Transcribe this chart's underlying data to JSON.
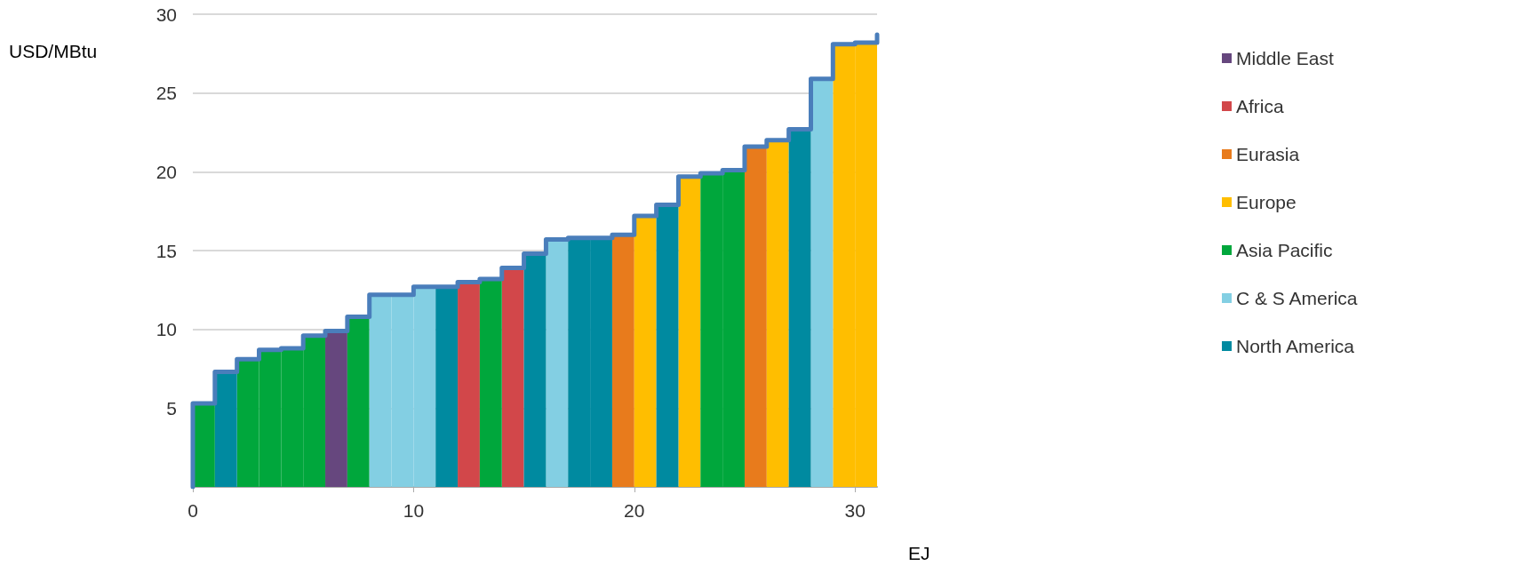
{
  "chart_data": {
    "type": "bar",
    "xlabel": "EJ",
    "ylabel": "USD/MBtu",
    "xlim": [
      0,
      31
    ],
    "xticks": [
      0,
      10,
      20,
      30
    ],
    "ylim": [
      0,
      30
    ],
    "yticks": [
      5,
      10,
      15,
      20,
      25,
      30
    ],
    "grid": "y",
    "legend": "right",
    "x": [
      0.5,
      1.5,
      2.5,
      3.5,
      4.5,
      5.5,
      6.5,
      7.5,
      8.5,
      9.5,
      10.5,
      11.5,
      12.5,
      13.5,
      14.5,
      15.5,
      16.5,
      17.5,
      18.5,
      19.5,
      20.5,
      21.5,
      22.5,
      23.5,
      24.5,
      25.5,
      26.5,
      27.5,
      28.5,
      29.5,
      30.5
    ],
    "series": [
      {
        "name": "Middle East",
        "color": "#66477e",
        "values": [
          null,
          null,
          null,
          null,
          null,
          null,
          9.9,
          null,
          null,
          null,
          null,
          null,
          null,
          null,
          null,
          null,
          null,
          null,
          null,
          null,
          null,
          null,
          null,
          null,
          null,
          null,
          null,
          null,
          null,
          null,
          null
        ]
      },
      {
        "name": "Africa",
        "color": "#d2474a",
        "values": [
          null,
          null,
          null,
          null,
          null,
          null,
          null,
          null,
          null,
          null,
          null,
          null,
          13.0,
          null,
          13.9,
          null,
          null,
          null,
          null,
          null,
          null,
          null,
          null,
          null,
          null,
          null,
          null,
          null,
          null,
          null,
          null
        ]
      },
      {
        "name": "Eurasia",
        "color": "#e87b1c",
        "values": [
          null,
          null,
          null,
          null,
          null,
          null,
          null,
          null,
          null,
          null,
          null,
          null,
          null,
          null,
          null,
          null,
          null,
          null,
          null,
          16.0,
          null,
          null,
          null,
          null,
          null,
          21.6,
          null,
          null,
          null,
          null,
          null
        ]
      },
      {
        "name": "Europe",
        "color": "#ffbe00",
        "values": [
          null,
          null,
          null,
          null,
          null,
          null,
          null,
          null,
          null,
          null,
          null,
          null,
          null,
          null,
          null,
          null,
          null,
          null,
          null,
          null,
          17.2,
          null,
          19.7,
          null,
          null,
          null,
          22.0,
          null,
          null,
          28.1,
          28.2
        ]
      },
      {
        "name": "Asia Pacific",
        "color": "#00a73c",
        "values": [
          5.3,
          null,
          8.1,
          8.7,
          8.8,
          9.6,
          null,
          10.8,
          null,
          null,
          null,
          null,
          null,
          13.2,
          null,
          null,
          null,
          null,
          null,
          null,
          null,
          null,
          null,
          19.9,
          20.1,
          null,
          null,
          null,
          null,
          null,
          null
        ]
      },
      {
        "name": "C & S America",
        "color": "#83cfe3",
        "values": [
          null,
          null,
          null,
          null,
          null,
          null,
          null,
          null,
          12.2,
          12.2,
          12.7,
          null,
          null,
          null,
          null,
          null,
          15.7,
          null,
          null,
          null,
          null,
          null,
          null,
          null,
          null,
          null,
          null,
          null,
          25.9,
          null,
          null
        ]
      },
      {
        "name": "North America",
        "color": "#008aa0",
        "values": [
          null,
          7.3,
          null,
          null,
          null,
          null,
          null,
          null,
          null,
          null,
          null,
          12.7,
          null,
          null,
          null,
          14.8,
          null,
          15.8,
          15.8,
          null,
          null,
          17.9,
          null,
          null,
          null,
          null,
          null,
          22.7,
          null,
          null,
          null
        ]
      },
      {
        "type": "step",
        "color": "#4a7ebb",
        "marker": "none",
        "x": [
          0,
          0,
          1,
          2,
          3,
          4,
          5,
          6,
          7,
          8,
          9,
          10,
          11,
          12,
          13,
          14,
          15,
          16,
          17,
          18,
          19,
          20,
          21,
          22,
          23,
          24,
          25,
          26,
          27,
          28,
          29,
          30,
          31
        ],
        "values": [
          0,
          5.3,
          7.3,
          8.1,
          8.7,
          8.8,
          9.6,
          9.9,
          10.8,
          12.2,
          12.2,
          12.7,
          12.7,
          13.0,
          13.2,
          13.9,
          14.8,
          15.7,
          15.8,
          15.8,
          16.0,
          17.2,
          17.9,
          19.7,
          19.9,
          20.1,
          21.6,
          22.0,
          22.7,
          25.9,
          28.1,
          28.2,
          28.7
        ]
      }
    ]
  }
}
